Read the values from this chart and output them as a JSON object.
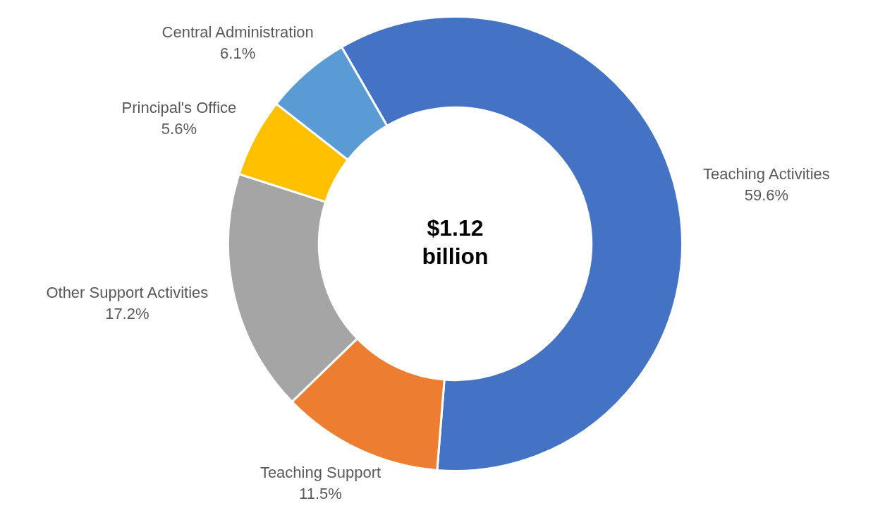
{
  "chart_data": {
    "type": "donut",
    "categories": [
      "Teaching Activities",
      "Teaching Support",
      "Other Support Activities",
      "Principal's Office",
      "Central Administration"
    ],
    "values": [
      59.6,
      11.5,
      17.2,
      5.6,
      6.1
    ],
    "value_labels": [
      "59.6%",
      "11.5%",
      "17.2%",
      "5.6%",
      "6.1%"
    ],
    "colors": [
      "#4472c4",
      "#ed7d31",
      "#a5a5a5",
      "#ffc000",
      "#5b9bd5"
    ],
    "annotations": [
      "$1.12 billion"
    ],
    "legend": false
  }
}
